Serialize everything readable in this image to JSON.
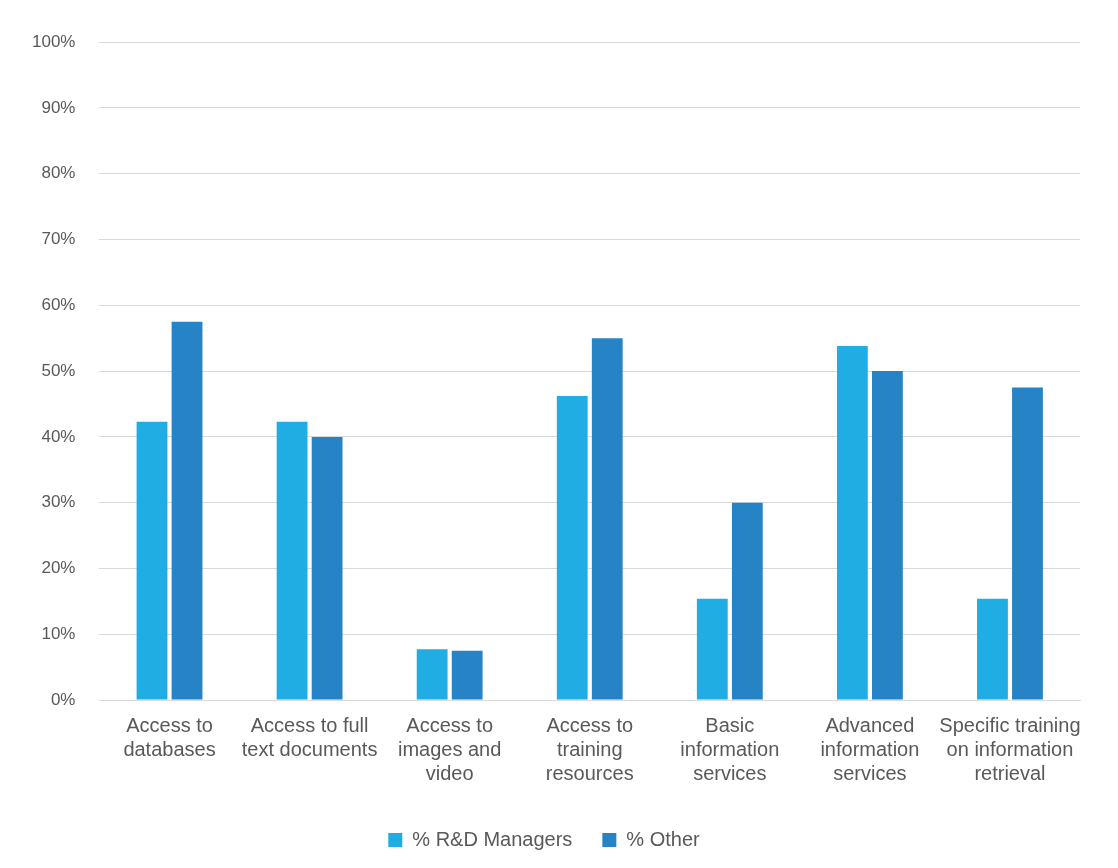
{
  "chart_data": {
    "type": "bar",
    "categories": [
      "Access to databases",
      "Access to full text documents",
      "Access to images and video",
      "Access to training resources",
      "Basic information services",
      "Advanced information services",
      "Specific training on information retrieval"
    ],
    "series": [
      {
        "name": "% R&D Managers",
        "color": "#1fade4",
        "values": [
          42.3,
          42.3,
          7.7,
          46.2,
          15.4,
          53.8,
          15.4
        ]
      },
      {
        "name": "% Other",
        "color": "#2683c6",
        "values": [
          57.5,
          40,
          7.5,
          55,
          30,
          50,
          47.5
        ]
      }
    ],
    "ylim": [
      0,
      100
    ],
    "yticks": [
      {
        "value": 0,
        "label": "0%"
      },
      {
        "value": 10,
        "label": "10%"
      },
      {
        "value": 20,
        "label": "20%"
      },
      {
        "value": 30,
        "label": "30%"
      },
      {
        "value": 40,
        "label": "40%"
      },
      {
        "value": 50,
        "label": "50%"
      },
      {
        "value": 60,
        "label": "60%"
      },
      {
        "value": 70,
        "label": "70%"
      },
      {
        "value": 80,
        "label": "80%"
      },
      {
        "value": 90,
        "label": "90%"
      },
      {
        "value": 100,
        "label": "100%"
      }
    ],
    "grid": "y",
    "legend": "bottom"
  }
}
